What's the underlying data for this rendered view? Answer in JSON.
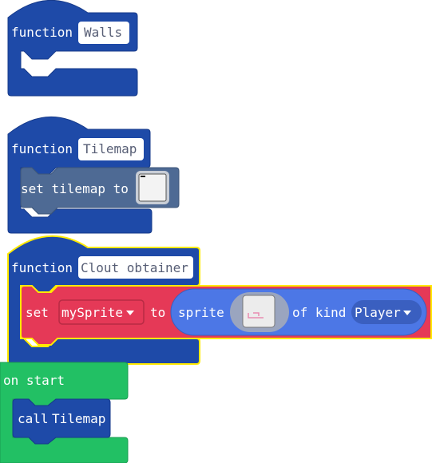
{
  "blocks": {
    "walls": {
      "keyword": "function",
      "name": "Walls"
    },
    "tilemap": {
      "keyword": "function",
      "name": "Tilemap",
      "inner": {
        "label": "set tilemap to"
      }
    },
    "clout": {
      "keyword": "function",
      "name": "Clout obtainer",
      "set_stmt": {
        "set_label": "set",
        "variable": "mySprite",
        "to_label": "to",
        "sprite_label": "sprite",
        "of_kind_label": "of kind",
        "kind": "Player"
      }
    },
    "on_start": {
      "label": "on start",
      "call": {
        "label": "call",
        "name": "Tilemap"
      }
    }
  },
  "colors": {
    "function_block": "#1e4aa8",
    "function_border": "#163a8a",
    "selected_outline": "#ffea00",
    "tilemap_block": "#4e6a94",
    "set_block": "#e53957",
    "sprite_reporter": "#4c77e6",
    "on_start_block": "#22c064",
    "field_bg": "#ffffff"
  },
  "icons": {
    "tilemap_preview": "tilemap-preview-icon",
    "sprite_preview": "sprite-preview-icon",
    "dropdown": "dropdown-arrow-icon"
  }
}
